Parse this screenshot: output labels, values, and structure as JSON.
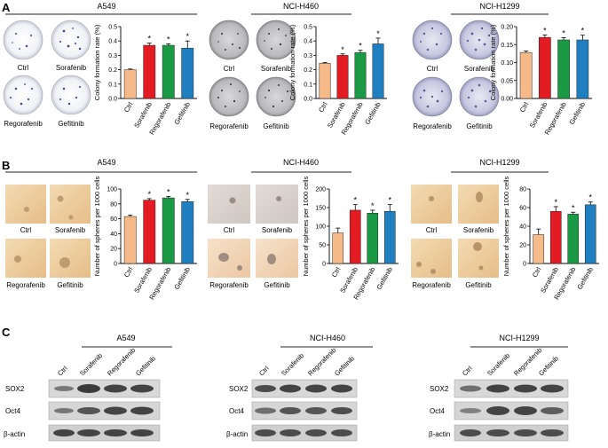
{
  "panels": [
    {
      "letter": "A"
    },
    {
      "letter": "B"
    },
    {
      "letter": "C"
    }
  ],
  "colors": {
    "Ctrl": "#f6b988",
    "Sorafenib": "#e31b23",
    "Regorafenib": "#1a9a45",
    "Gefitinib": "#1f7fc1"
  },
  "panelA": {
    "plates": [
      "Ctrl",
      "Sorafenib",
      "Regorafenib",
      "Gefitinib"
    ],
    "ylabel": "Colony formation rate (%)"
  },
  "panelB": {
    "photos": [
      "Ctrl",
      "Sorafenib",
      "Regorafenib",
      "Gefitinib"
    ],
    "ylabel": "Number of spheres per 1000 cells"
  },
  "panelC": {
    "lanes": [
      "Ctrl",
      "Sorafenib",
      "Regorafenib",
      "Gefitinib"
    ],
    "proteins": [
      "SOX2",
      "Oct4",
      "β-actin"
    ],
    "cell_lines": [
      "A549",
      "NCI-H460",
      "NCI-H1299"
    ]
  },
  "chart_data": [
    {
      "type": "bar",
      "title": "A549",
      "ylabel": "Colony formation rate (%)",
      "categories": [
        "Ctrl",
        "Sorafenib",
        "Regorafenib",
        "Gefitinib"
      ],
      "values": [
        0.2,
        0.37,
        0.37,
        0.35
      ],
      "errors": [
        0.005,
        0.015,
        0.01,
        0.05
      ],
      "significance": [
        "",
        "*",
        "*",
        "*"
      ],
      "ylim": [
        0,
        0.5
      ],
      "yticks": [
        "0.0",
        "0.1",
        "0.2",
        "0.3",
        "0.4",
        "0.5"
      ]
    },
    {
      "type": "bar",
      "title": "NCI-H460",
      "ylabel": "Colony formation rate (%)",
      "categories": [
        "Ctrl",
        "Sorafenib",
        "Regorafenib",
        "Gefitinib"
      ],
      "values": [
        0.245,
        0.3,
        0.32,
        0.38
      ],
      "errors": [
        0.005,
        0.01,
        0.015,
        0.04
      ],
      "significance": [
        "",
        "*",
        "*",
        "*"
      ],
      "ylim": [
        0,
        0.5
      ],
      "yticks": [
        "0.0",
        "0.1",
        "0.2",
        "0.3",
        "0.4",
        "0.5"
      ]
    },
    {
      "type": "bar",
      "title": "NCI-H1299",
      "ylabel": "Colony formation rate (%)",
      "categories": [
        "Ctrl",
        "Sorafenib",
        "Regorafenib",
        "Gefitinib"
      ],
      "values": [
        0.128,
        0.17,
        0.163,
        0.163
      ],
      "errors": [
        0.004,
        0.007,
        0.006,
        0.013
      ],
      "significance": [
        "",
        "*",
        "*",
        "*"
      ],
      "ylim": [
        0,
        0.2
      ],
      "yticks": [
        "0.00",
        "0.05",
        "0.10",
        "0.15",
        "0.20"
      ]
    },
    {
      "type": "bar",
      "title": "A549",
      "ylabel": "Number of spheres per 1000 cells",
      "categories": [
        "Ctrl",
        "Sorafenib",
        "Regorafenib",
        "Gefitinib"
      ],
      "values": [
        63,
        85,
        88,
        83
      ],
      "errors": [
        2,
        2,
        2,
        3
      ],
      "significance": [
        "",
        "*",
        "*",
        "*"
      ],
      "ylim": [
        0,
        100
      ],
      "yticks": [
        "0",
        "20",
        "40",
        "60",
        "80",
        "100"
      ]
    },
    {
      "type": "bar",
      "title": "NCI-H460",
      "ylabel": "Number of spheres per 1000 cells",
      "categories": [
        "Ctrl",
        "Sorafenib",
        "Regorafenib",
        "Gefitinib"
      ],
      "values": [
        82,
        143,
        135,
        140
      ],
      "errors": [
        13,
        15,
        8,
        18
      ],
      "significance": [
        "",
        "*",
        "*",
        "*"
      ],
      "ylim": [
        0,
        200
      ],
      "yticks": [
        "0",
        "50",
        "100",
        "150",
        "200"
      ]
    },
    {
      "type": "bar",
      "title": "NCI-H1299",
      "ylabel": "Number of spheres per 1000 cells",
      "categories": [
        "Ctrl",
        "Sorafenib",
        "Regorafenib",
        "Gefitinib"
      ],
      "values": [
        31,
        56,
        53,
        63
      ],
      "errors": [
        6,
        5,
        2,
        3
      ],
      "significance": [
        "",
        "*",
        "*",
        "*"
      ],
      "ylim": [
        0,
        80
      ],
      "yticks": [
        "0",
        "20",
        "40",
        "60",
        "80"
      ]
    }
  ]
}
